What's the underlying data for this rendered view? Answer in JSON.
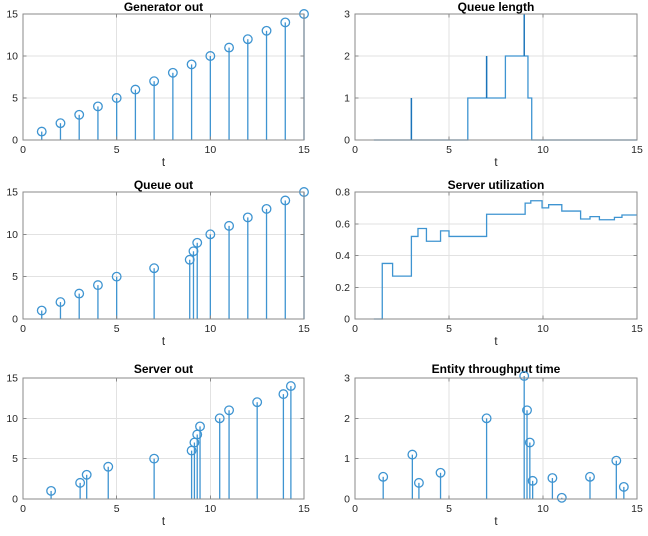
{
  "figure": {
    "background": "#ffffff"
  },
  "style": {
    "line_color": "#3e94d1",
    "line_dark_color": "#1a73b9",
    "box_color": "#8a8a8a",
    "grid_color": "#e2e2e2",
    "tick_label_color": "#262626",
    "title_color": "#000000"
  },
  "chart_data": [
    {
      "type": "stem",
      "title": "Generator out",
      "xlabel": "t",
      "xlim": [
        0,
        15
      ],
      "ylim": [
        0,
        15
      ],
      "xticks": [
        0,
        5,
        10,
        15
      ],
      "yticks": [
        0,
        5,
        10,
        15
      ],
      "grid": true,
      "legend": false,
      "x": [
        1,
        2,
        3,
        4,
        5,
        6,
        7,
        8,
        9,
        10,
        11,
        12,
        13,
        14,
        15
      ],
      "y": [
        1,
        2,
        3,
        4,
        5,
        6,
        7,
        8,
        9,
        10,
        11,
        12,
        13,
        14,
        15
      ]
    },
    {
      "type": "stairs",
      "title": "Queue length",
      "xlabel": "t",
      "xlim": [
        0,
        15
      ],
      "ylim": [
        0,
        3
      ],
      "xticks": [
        0,
        5,
        10,
        15
      ],
      "yticks": [
        0,
        1,
        2,
        3
      ],
      "grid": true,
      "legend": false,
      "x": [
        1,
        3,
        3,
        6,
        7,
        7,
        8,
        9,
        9,
        9.2,
        9.4
      ],
      "y": [
        0,
        1,
        0,
        1,
        2,
        1,
        2,
        3,
        2,
        1,
        0
      ],
      "x_end": 15
    },
    {
      "type": "stem",
      "title": "Queue out",
      "xlabel": "t",
      "xlim": [
        0,
        15
      ],
      "ylim": [
        0,
        15
      ],
      "xticks": [
        0,
        5,
        10,
        15
      ],
      "yticks": [
        0,
        5,
        10,
        15
      ],
      "grid": true,
      "legend": false,
      "x": [
        1,
        2,
        3,
        4,
        5,
        7,
        8.9,
        9.1,
        9.3,
        10,
        11,
        12,
        13,
        14,
        15
      ],
      "y": [
        1,
        2,
        3,
        4,
        5,
        6,
        7,
        8,
        9,
        10,
        11,
        12,
        13,
        14,
        15
      ]
    },
    {
      "type": "stairs",
      "title": "Server utilization",
      "xlabel": "t",
      "xlim": [
        0,
        15
      ],
      "ylim": [
        0,
        0.8
      ],
      "xticks": [
        0,
        5,
        10,
        15
      ],
      "yticks": [
        0,
        0.2,
        0.4,
        0.6,
        0.8
      ],
      "grid": true,
      "legend": false,
      "x": [
        1,
        1.45,
        2,
        3,
        3.35,
        3.8,
        4.55,
        5,
        7,
        9.05,
        9.35,
        9.95,
        10.3,
        11,
        12,
        12.5,
        13,
        13.8,
        14.2
      ],
      "y": [
        0,
        0.35,
        0.27,
        0.52,
        0.57,
        0.49,
        0.555,
        0.52,
        0.66,
        0.73,
        0.745,
        0.7,
        0.72,
        0.68,
        0.63,
        0.645,
        0.625,
        0.64,
        0.655
      ],
      "x_end": 15
    },
    {
      "type": "stem",
      "title": "Server out",
      "xlabel": "t",
      "xlim": [
        0,
        15
      ],
      "ylim": [
        0,
        15
      ],
      "xticks": [
        0,
        5,
        10,
        15
      ],
      "yticks": [
        0,
        5,
        10,
        15
      ],
      "grid": true,
      "legend": false,
      "x": [
        1.5,
        3.05,
        3.4,
        4.55,
        7,
        9.0,
        9.15,
        9.3,
        9.45,
        10.5,
        11,
        12.5,
        13.9,
        14.3
      ],
      "y": [
        1,
        2,
        3,
        4,
        5,
        6,
        7,
        8,
        9,
        10,
        11,
        12,
        13,
        14
      ]
    },
    {
      "type": "stem",
      "title": "Entity throughput time",
      "xlabel": "t",
      "xlim": [
        0,
        15
      ],
      "ylim": [
        0,
        3
      ],
      "xticks": [
        0,
        5,
        10,
        15
      ],
      "yticks": [
        0,
        1,
        2,
        3
      ],
      "grid": true,
      "legend": false,
      "x": [
        1.5,
        3.05,
        3.4,
        4.55,
        7,
        9.0,
        9.15,
        9.3,
        9.45,
        10.5,
        11,
        12.5,
        13.9,
        14.3
      ],
      "y": [
        0.55,
        1.1,
        0.4,
        0.65,
        2.0,
        3.05,
        2.2,
        1.4,
        0.45,
        0.52,
        0.03,
        0.55,
        0.95,
        0.3
      ]
    }
  ]
}
